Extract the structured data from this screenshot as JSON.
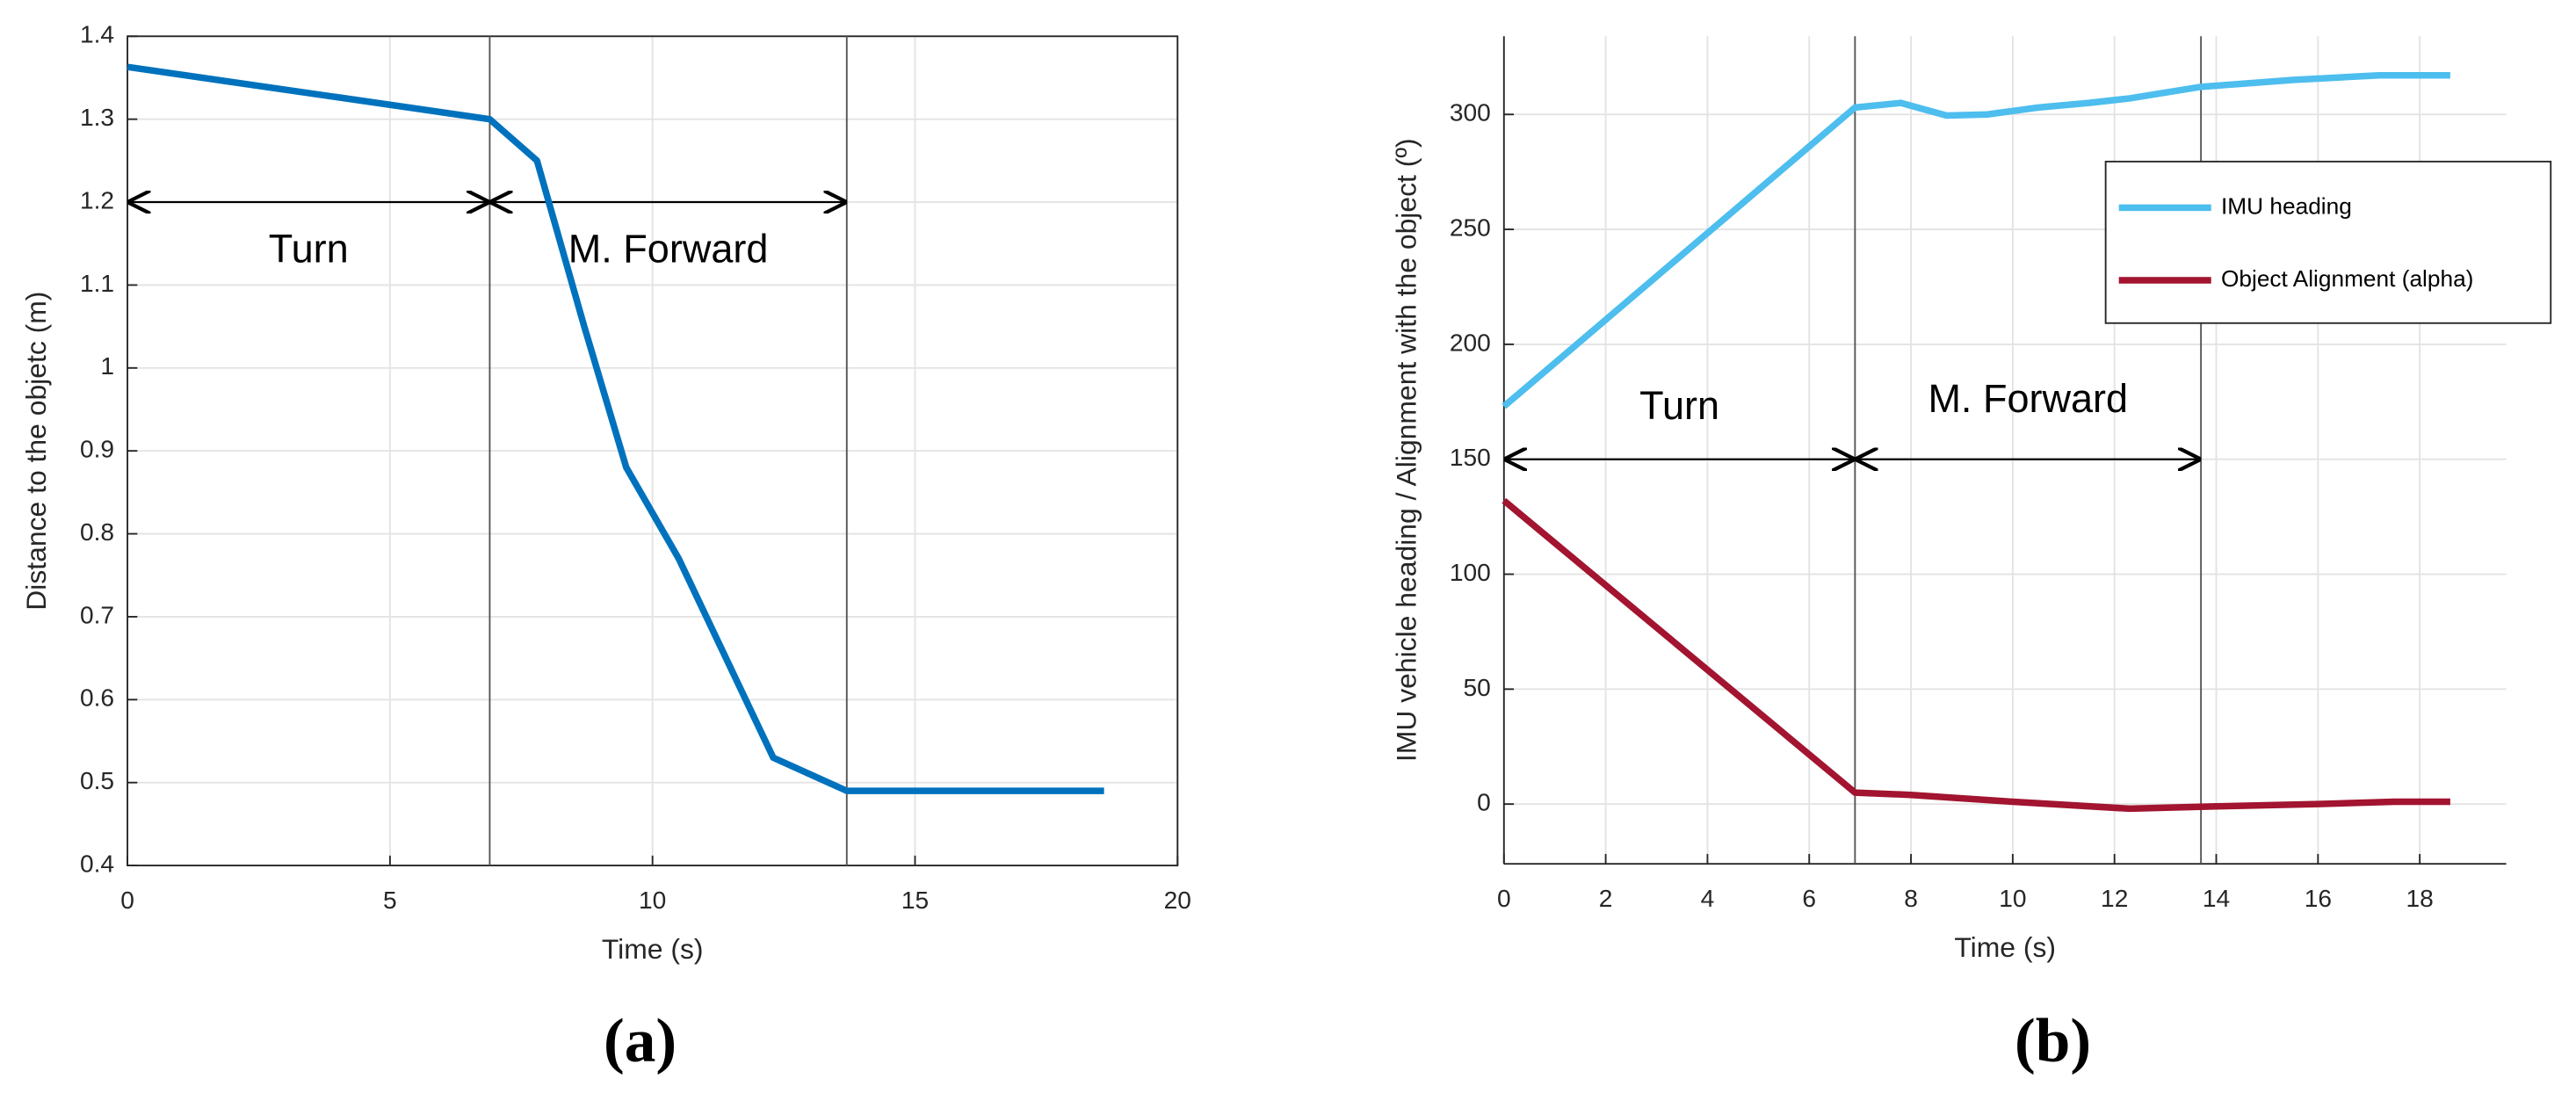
{
  "chart_data": [
    {
      "type": "line",
      "panel_label": "(a)",
      "xlabel": "Time (s)",
      "ylabel": "Distance to the  objetc (m)",
      "xlim": [
        0,
        20
      ],
      "xticks": [
        0,
        5,
        10,
        15,
        20
      ],
      "ylim": [
        0.4,
        1.4
      ],
      "yticks": [
        0.4,
        0.5,
        0.6,
        0.7,
        0.8,
        0.9,
        1,
        1.1,
        1.2,
        1.3,
        1.4
      ],
      "grid": true,
      "series": [
        {
          "name": null,
          "color": "#0072bd",
          "x": [
            0,
            6.9,
            7.8,
            8.7,
            9.5,
            10.5,
            12.3,
            13.7,
            18.6
          ],
          "values": [
            1.363,
            1.3,
            1.25,
            1.05,
            0.88,
            0.77,
            0.53,
            0.49,
            0.49
          ]
        }
      ],
      "vlines": [
        6.9,
        13.7
      ],
      "arrows": [
        {
          "label": "Turn",
          "from": 0,
          "to": 6.9,
          "y": 1.2,
          "label_y": 1.14
        },
        {
          "label": "M. Forward",
          "from": 6.9,
          "to": 13.7,
          "y": 1.2,
          "label_y": 1.14
        }
      ]
    },
    {
      "type": "line",
      "panel_label": "(b)",
      "xlabel": "Time (s)",
      "ylabel": "IMU vehicle heading / Alignment with the object (º)",
      "xlim": [
        0,
        19.7
      ],
      "xticks": [
        0,
        2,
        4,
        6,
        8,
        10,
        12,
        14,
        16,
        18
      ],
      "ylim": [
        -26,
        334
      ],
      "yticks": [
        0,
        50,
        100,
        150,
        200,
        250,
        300
      ],
      "grid": true,
      "legend": "upper right",
      "series": [
        {
          "name": "IMU heading",
          "color": "#4dbeee",
          "x": [
            0,
            6.9,
            7.8,
            8.7,
            9.5,
            10.5,
            11.5,
            12.3,
            13.7,
            15.5,
            17.2,
            18.6
          ],
          "values": [
            173,
            303,
            305,
            299.5,
            300,
            303,
            305,
            307,
            312,
            315,
            317,
            317
          ]
        },
        {
          "name": "Object Alignment (alpha)",
          "color": "#a2142f",
          "x": [
            0,
            6.9,
            8,
            10,
            12.3,
            14,
            16,
            17.5,
            18.6
          ],
          "values": [
            132,
            5,
            4,
            1,
            -2,
            -1,
            0,
            1,
            1
          ]
        }
      ],
      "vlines": [
        6.9,
        13.7
      ],
      "arrows": [
        {
          "label": "Turn",
          "from": 0,
          "to": 6.9,
          "y": 150,
          "label_y": 172
        },
        {
          "label": "M. Forward",
          "from": 6.9,
          "to": 13.7,
          "y": 150,
          "label_y": 175
        }
      ]
    }
  ]
}
